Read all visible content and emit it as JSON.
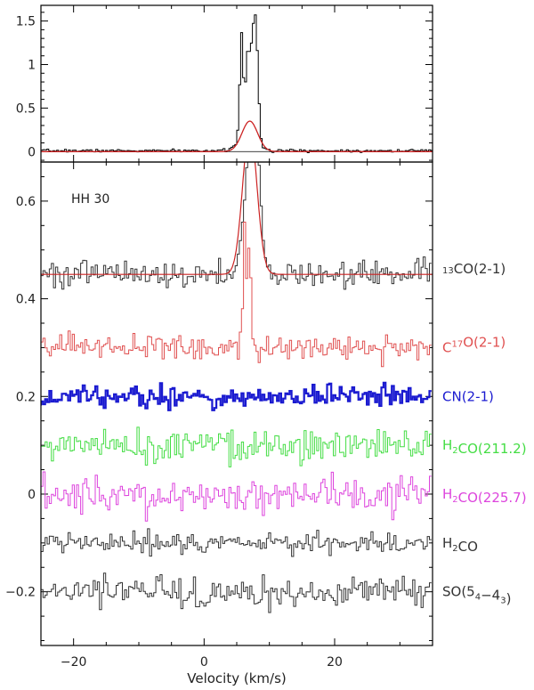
{
  "chart_data": [
    {
      "type": "line",
      "panel": "top",
      "xlim": [
        -25,
        35
      ],
      "ylim": [
        -0.12,
        1.68
      ],
      "yticks": [
        0,
        0.5,
        1,
        1.5
      ],
      "ytick_labels": [
        "0",
        "0.5",
        "1",
        "1.5"
      ],
      "series": [
        {
          "color": "#000000",
          "style": "histogram",
          "points": [
            [
              -25,
              0.01
            ],
            [
              -10,
              0.01
            ],
            [
              2,
              0.01
            ],
            [
              4,
              0.03
            ],
            [
              5,
              0.08
            ],
            [
              5.4,
              0.3
            ],
            [
              5.7,
              1.0
            ],
            [
              6.0,
              1.55
            ],
            [
              6.3,
              0.5
            ],
            [
              6.6,
              0.95
            ],
            [
              6.9,
              1.25
            ],
            [
              7.2,
              1.1
            ],
            [
              7.5,
              1.32
            ],
            [
              7.8,
              1.55
            ],
            [
              8.1,
              1.58
            ],
            [
              8.4,
              0.95
            ],
            [
              8.7,
              0.35
            ],
            [
              9.0,
              0.05
            ],
            [
              10,
              0.02
            ],
            [
              12,
              0.01
            ],
            [
              20,
              0.01
            ],
            [
              35,
              0.01
            ]
          ]
        },
        {
          "color": "#cc2222",
          "style": "smooth",
          "gaussian": {
            "amplitude": 0.35,
            "center": 7.0,
            "sigma": 1.2,
            "baseline": 0.0
          }
        }
      ]
    },
    {
      "type": "line",
      "panel": "bottom",
      "xlim": [
        -25,
        35
      ],
      "ylim": [
        -0.31,
        0.68
      ],
      "xticks": [
        -20,
        0,
        20
      ],
      "xtick_labels": [
        "-20",
        "0",
        "20"
      ],
      "yticks": [
        -0.2,
        0,
        0.2,
        0.4,
        0.6
      ],
      "ytick_labels": [
        "-0.2",
        "0",
        "0.2",
        "0.4",
        "0.6"
      ],
      "xlabel": "Velocity (km/s)",
      "annotation": "HH 30",
      "series": [
        {
          "name": "13CO(2-1)",
          "label_parts": [
            [
              "sup",
              "13"
            ],
            [
              "t",
              "CO(2-1)"
            ]
          ],
          "color": "#333333",
          "baseline": 0.45,
          "noise": 0.014,
          "peak_points": [
            [
              5.0,
              0.46
            ],
            [
              5.5,
              0.5
            ],
            [
              6.0,
              0.55
            ],
            [
              6.5,
              0.62
            ],
            [
              7.0,
              0.75
            ],
            [
              7.5,
              0.8
            ],
            [
              8.0,
              0.78
            ],
            [
              8.5,
              0.7
            ],
            [
              9.0,
              0.56
            ],
            [
              9.5,
              0.48
            ],
            [
              10.0,
              0.46
            ]
          ],
          "fit": {
            "amplitude": 0.3,
            "center": 7.0,
            "sigma": 1.1
          }
        },
        {
          "name": "C17O(2-1)",
          "label_parts": [
            [
              "t",
              "C"
            ],
            [
              "sup",
              "17"
            ],
            [
              "t",
              "O(2-1)"
            ]
          ],
          "color": "#e05050",
          "baseline": 0.3,
          "noise": 0.012,
          "peak_points": [
            [
              5.5,
              0.32
            ],
            [
              6.0,
              0.36
            ],
            [
              6.4,
              0.58
            ],
            [
              6.8,
              0.38
            ],
            [
              7.1,
              0.57
            ],
            [
              7.5,
              0.32
            ],
            [
              8.0,
              0.31
            ]
          ]
        },
        {
          "name": "CN(2-1)",
          "label_parts": [
            [
              "t",
              "CN(2-1)"
            ]
          ],
          "color": "#1a1ad0",
          "baseline": 0.2,
          "noise": 0.012,
          "stroke": 2.2
        },
        {
          "name": "H2CO(211.2)",
          "label_parts": [
            [
              "t",
              "H"
            ],
            [
              "sub",
              "2"
            ],
            [
              "t",
              "CO(211.2)"
            ]
          ],
          "color": "#44dd44",
          "baseline": 0.1,
          "noise": 0.016
        },
        {
          "name": "H2CO(225.7)",
          "label_parts": [
            [
              "t",
              "H"
            ],
            [
              "sub",
              "2"
            ],
            [
              "t",
              "CO(225.7)"
            ]
          ],
          "color": "#dd44dd",
          "baseline": 0.0,
          "noise": 0.016
        },
        {
          "name": "H2CO",
          "label_parts": [
            [
              "t",
              "H"
            ],
            [
              "sub",
              "2"
            ],
            [
              "t",
              "CO"
            ]
          ],
          "color": "#333333",
          "baseline": -0.1,
          "noise": 0.01
        },
        {
          "name": "SO(54-43)",
          "label_parts": [
            [
              "t",
              "SO(5"
            ],
            [
              "sub",
              "4"
            ],
            [
              "t",
              "−4"
            ],
            [
              "sub",
              "3"
            ],
            [
              "t",
              ")"
            ]
          ],
          "color": "#333333",
          "baseline": -0.2,
          "noise": 0.016
        }
      ]
    }
  ]
}
